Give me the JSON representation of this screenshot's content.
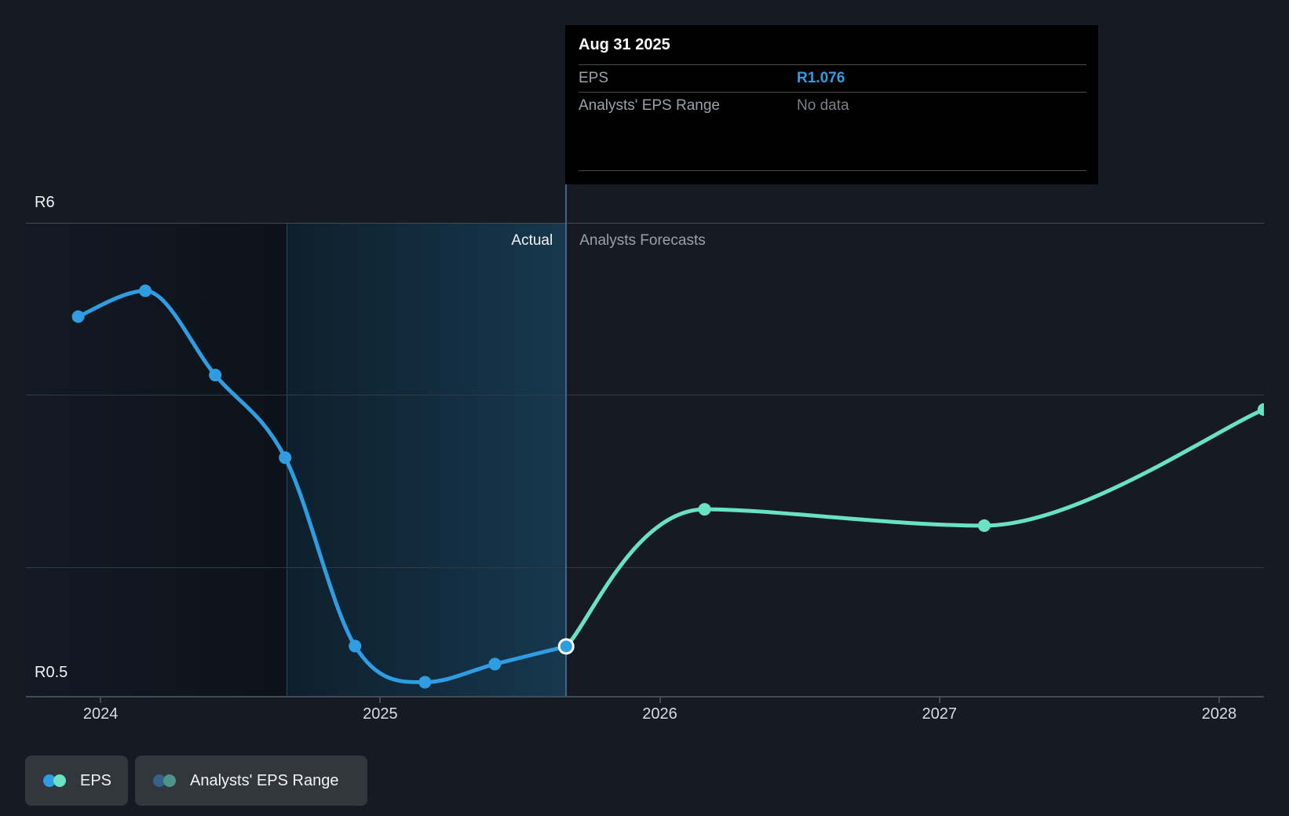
{
  "colors": {
    "background": "#161a23",
    "blue": "#2f9de2",
    "teal": "#68e2c2",
    "grid": "#323a45",
    "grid_strong": "#434b56",
    "divider": "#3f6880",
    "tooltip_bg": "#000000",
    "tooltip_divider": "#46494e",
    "label_gray": "#9aa1a8",
    "dim_gray": "#7b8187",
    "year_label": "#d9dcdf",
    "white": "#f2f4f5",
    "legend_bg": "#32363d",
    "muted_blue": "#34638a",
    "muted_teal": "#4f9488"
  },
  "tooltip": {
    "title": "Aug 31 2025",
    "eps_label": "EPS",
    "eps_value": "R1.076",
    "range_label": "Analysts' EPS Range",
    "range_value": "No data"
  },
  "phase_labels": {
    "actual": "Actual",
    "forecast": "Analysts Forecasts"
  },
  "chart_data": {
    "type": "line",
    "currency_prefix": "R",
    "xlim": [
      2023.733,
      2028.16
    ],
    "ylim": [
      0.5,
      6
    ],
    "y_gridline_values": [
      6,
      4,
      2
    ],
    "y_axis_top_label": "R6",
    "y_axis_bottom_label": "R0.5",
    "x_ticks": [
      2024,
      2025,
      2026,
      2027,
      2028
    ],
    "divider_x": 2025.665,
    "highlight_band": [
      2024.665,
      2025.665
    ],
    "grid": true,
    "legend_position": "bottom-left",
    "series": [
      {
        "name": "EPS (actual)",
        "color_key": "blue",
        "points": [
          {
            "date": "Nov 30 2023",
            "x": 2023.92,
            "eps": 4.91
          },
          {
            "date": "Feb 29 2024",
            "x": 2024.16,
            "eps": 5.21
          },
          {
            "date": "May 31 2024",
            "x": 2024.41,
            "eps": 4.23
          },
          {
            "date": "Aug 31 2024",
            "x": 2024.66,
            "eps": 3.27
          },
          {
            "date": "Nov 30 2024",
            "x": 2024.91,
            "eps": 1.08
          },
          {
            "date": "Feb 28 2025",
            "x": 2025.16,
            "eps": 0.66
          },
          {
            "date": "May 31 2025",
            "x": 2025.41,
            "eps": 0.87
          },
          {
            "date": "Aug 31 2025",
            "x": 2025.665,
            "eps": 1.076,
            "highlighted": true
          }
        ]
      },
      {
        "name": "EPS (analysts forecast)",
        "color_key": "teal",
        "points": [
          {
            "date": "Aug 31 2025",
            "x": 2025.665,
            "eps": 1.076
          },
          {
            "date": "Feb 28 2026",
            "x": 2026.16,
            "eps": 2.67
          },
          {
            "date": "Feb 28 2027",
            "x": 2027.16,
            "eps": 2.48
          },
          {
            "date": "Feb 29 2028",
            "x": 2028.16,
            "eps": 3.83
          }
        ]
      }
    ]
  },
  "legend": [
    {
      "label": "EPS"
    },
    {
      "label": "Analysts' EPS Range"
    }
  ]
}
